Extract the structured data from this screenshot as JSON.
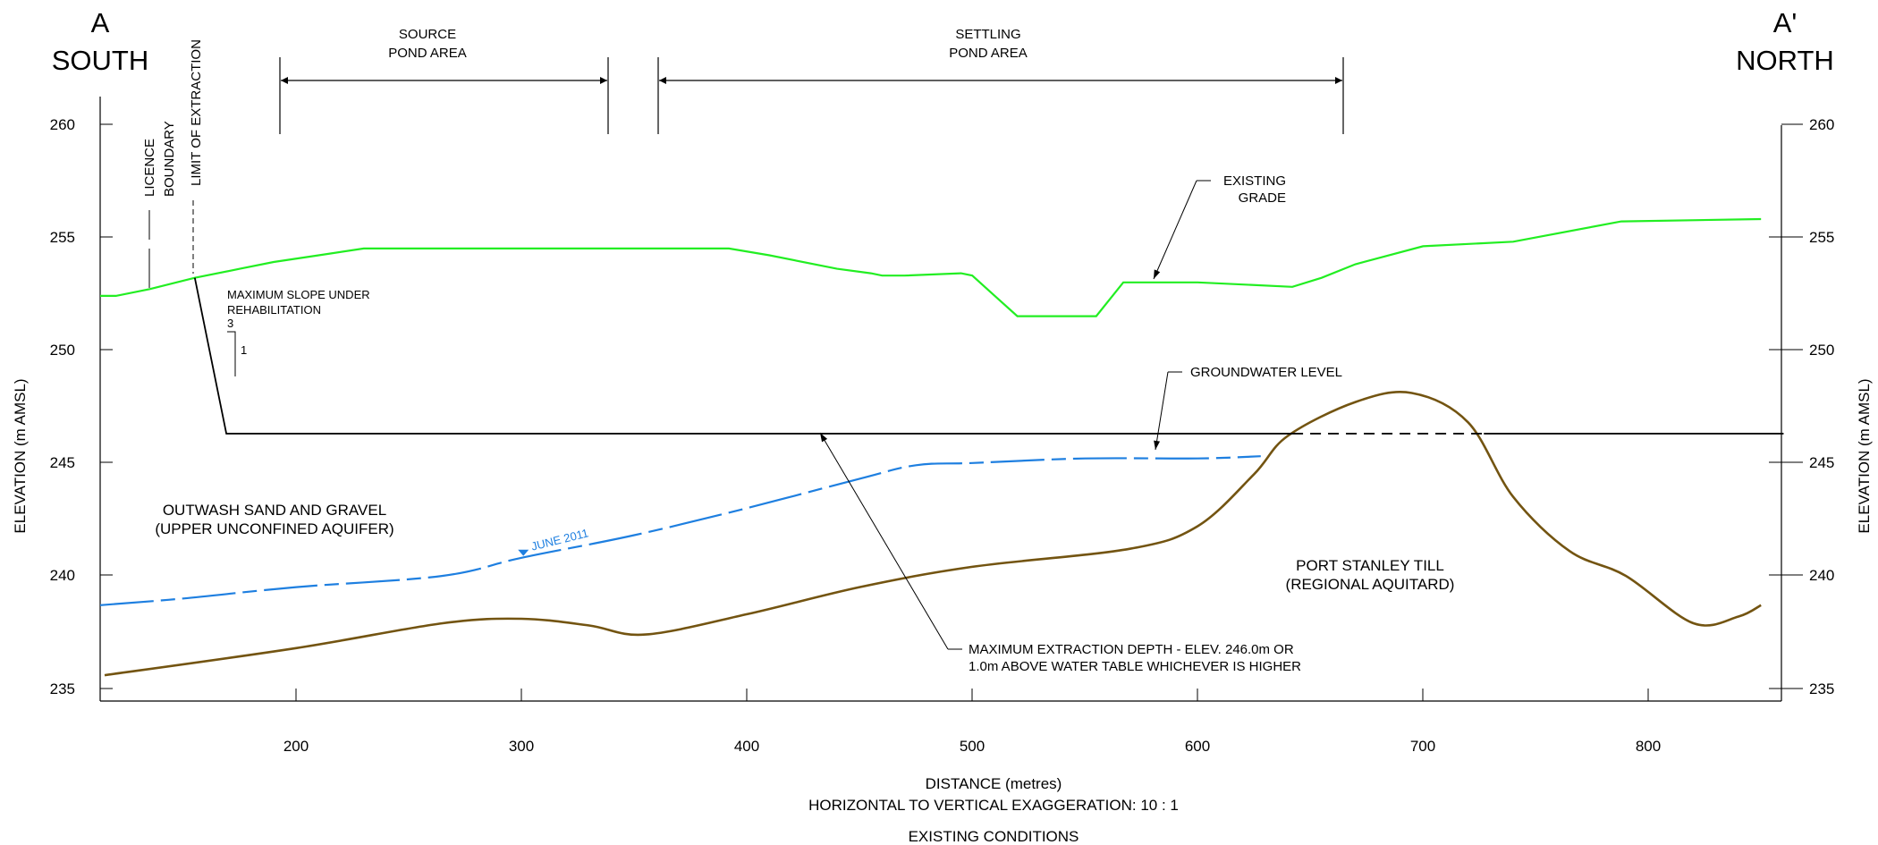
{
  "section": {
    "left_letter": "A",
    "left_direction": "SOUTH",
    "right_letter": "A'",
    "right_direction": "NORTH"
  },
  "areas": {
    "source_line1": "SOURCE",
    "source_line2": "POND AREA",
    "settling_line1": "SETTLING",
    "settling_line2": "POND AREA"
  },
  "labels": {
    "licence_line1": "LICENCE",
    "licence_line2": "BOUNDARY",
    "limit_extraction": "LIMIT OF EXTRACTION",
    "existing_grade_line1": "EXISTING",
    "existing_grade_line2": "GRADE",
    "groundwater_level": "GROUNDWATER LEVEL",
    "max_slope_line1": "MAXIMUM SLOPE UNDER",
    "max_slope_line2": "REHABILITATION",
    "slope_horizontal": "3",
    "slope_vertical": "1",
    "june_2011": "JUNE 2011",
    "outwash_line1": "OUTWASH SAND AND GRAVEL",
    "outwash_line2": "(UPPER UNCONFINED AQUIFER)",
    "till_line1": "PORT STANLEY TILL",
    "till_line2": "(REGIONAL AQUITARD)",
    "max_depth_line1": "MAXIMUM EXTRACTION DEPTH - ELEV. 246.0m OR",
    "max_depth_line2": "1.0m ABOVE WATER TABLE WHICHEVER IS HIGHER"
  },
  "axes": {
    "ylabel": "ELEVATION (m AMSL)",
    "xlabel": "DISTANCE (metres)",
    "exaggeration": "HORIZONTAL TO VERTICAL EXAGGERATION: 10 : 1",
    "caption": "EXISTING CONDITIONS",
    "x_ticks": [
      "200",
      "300",
      "400",
      "500",
      "600",
      "700",
      "800"
    ],
    "y_ticks": [
      "260",
      "255",
      "250",
      "245",
      "240",
      "235"
    ],
    "x_range": [
      113,
      861
    ],
    "y_range": [
      234.5,
      261.5
    ]
  },
  "colors": {
    "existing_grade": "#22ee22",
    "groundwater": "#1e7fe0",
    "till": "#735411",
    "line": "#000000"
  },
  "chart_data": {
    "type": "line",
    "xlabel": "DISTANCE (metres)",
    "ylabel": "ELEVATION (m AMSL)",
    "xlim": [
      113,
      861
    ],
    "ylim": [
      234.5,
      261.5
    ],
    "grid": false,
    "series": [
      {
        "name": "EXISTING GRADE",
        "x": [
          113,
          120,
          135,
          155,
          175,
          190,
          210,
          230,
          260,
          300,
          350,
          392,
          410,
          440,
          455,
          460,
          470,
          495,
          500,
          510,
          520,
          535,
          555,
          567,
          600,
          642,
          655,
          670,
          700,
          740,
          788,
          850
        ],
        "y": [
          252.4,
          252.4,
          252.7,
          253.2,
          253.6,
          253.9,
          254.2,
          254.5,
          254.5,
          254.5,
          254.5,
          254.5,
          254.2,
          253.6,
          253.4,
          253.3,
          253.3,
          253.4,
          253.3,
          252.4,
          251.5,
          251.5,
          251.5,
          253.0,
          253.0,
          252.8,
          253.2,
          253.8,
          254.6,
          254.8,
          255.7,
          255.8
        ]
      },
      {
        "name": "GROUNDWATER LEVEL",
        "x": [
          113,
          150,
          200,
          265,
          300,
          350,
          400,
          450,
          475,
          500,
          550,
          600,
          628
        ],
        "y": [
          238.7,
          239.0,
          239.5,
          240.0,
          240.8,
          241.8,
          243.0,
          244.3,
          244.9,
          245.0,
          245.2,
          245.2,
          245.3
        ]
      },
      {
        "name": "JUNE 2011",
        "x": [
          113,
          150,
          200,
          265,
          300,
          350,
          400,
          450,
          475,
          500,
          550,
          600,
          628
        ],
        "y": [
          238.7,
          239.0,
          239.5,
          240.0,
          240.8,
          241.8,
          243.0,
          244.3,
          244.9,
          245.0,
          245.2,
          245.2,
          245.3
        ]
      },
      {
        "name": "PORT STANLEY TILL",
        "x": [
          115,
          200,
          265,
          300,
          330,
          355,
          400,
          450,
          500,
          570,
          600,
          625,
          640,
          670,
          695,
          720,
          740,
          765,
          790,
          820,
          840,
          850
        ],
        "y": [
          235.6,
          236.8,
          237.9,
          238.1,
          237.8,
          237.4,
          238.3,
          239.5,
          240.4,
          241.2,
          242.2,
          244.5,
          246.2,
          247.7,
          248.1,
          246.8,
          243.5,
          241.1,
          240.0,
          237.9,
          238.2,
          238.7
        ]
      },
      {
        "name": "MAXIMUM EXTRACTION DEPTH - ELEV. 246.0m OR",
        "x": [
          155,
          169,
          860
        ],
        "y": [
          253.2,
          246.3,
          246.3
        ]
      }
    ]
  }
}
